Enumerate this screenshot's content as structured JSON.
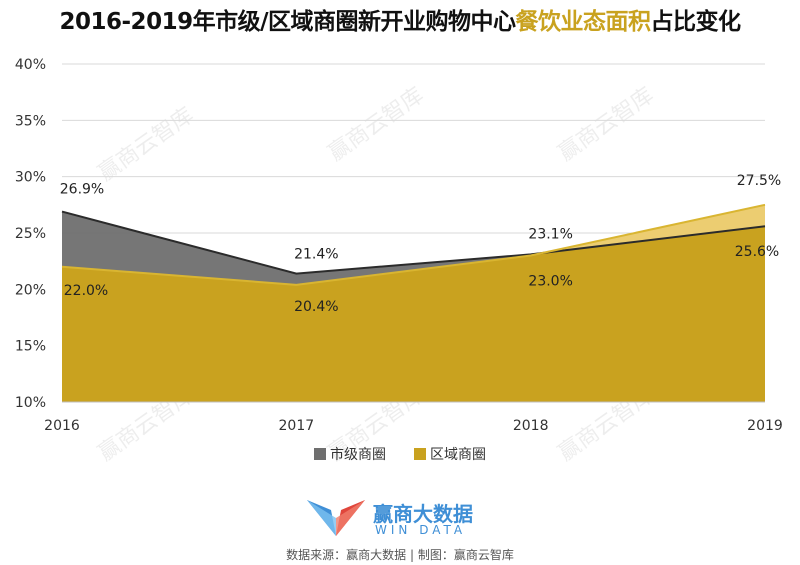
{
  "title": {
    "part1": "2016-2019年市级/区域商圈新开业购物中心",
    "highlight": "餐饮业态面积",
    "part2": "占比变化"
  },
  "chart_data": {
    "type": "area",
    "categories": [
      "2016",
      "2017",
      "2018",
      "2019"
    ],
    "ylim": [
      10,
      40
    ],
    "yticks": [
      10,
      15,
      20,
      25,
      30,
      35,
      40
    ],
    "ytick_labels": [
      "10%",
      "15%",
      "20%",
      "25%",
      "30%",
      "35%",
      "40%"
    ],
    "series": [
      {
        "name": "市级商圈",
        "values": [
          26.9,
          21.4,
          23.1,
          25.6
        ],
        "labels": [
          "26.9%",
          "21.4%",
          "23.1%",
          "25.6%"
        ],
        "color": "#6f6f6f"
      },
      {
        "name": "区域商圈",
        "values": [
          22.0,
          20.4,
          23.0,
          27.5
        ],
        "labels": [
          "22.0%",
          "20.4%",
          "23.0%",
          "27.5%"
        ],
        "color": "#c9a21f"
      }
    ],
    "grid": true,
    "legend": "bottom-center"
  },
  "colors": {
    "gray_fill": "#6f6f6f",
    "gold_fill": "#c9a21f",
    "gold_light": "#f0d27a",
    "logo_blue": "#3f8fd6",
    "logo_red": "#e0463c"
  },
  "watermark": "赢商云智库",
  "logo": {
    "cn": "赢商大数据",
    "en": "WIN DATA"
  },
  "source": "数据来源：赢商大数据 | 制图：赢商云智库"
}
